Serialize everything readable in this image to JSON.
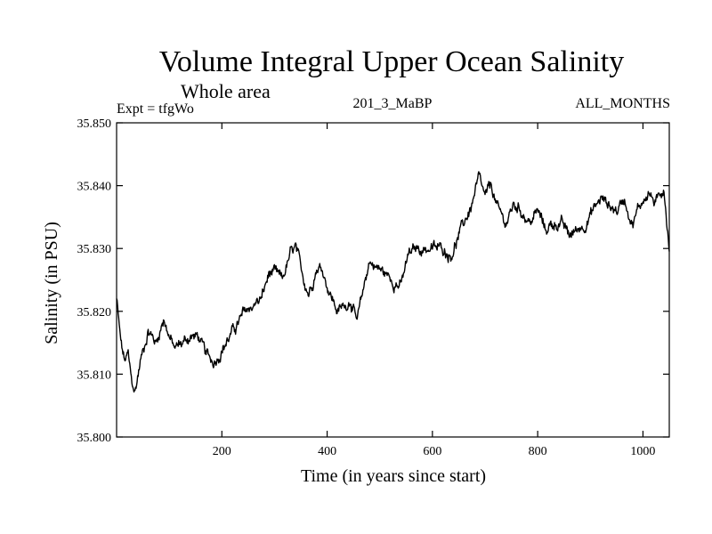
{
  "chart_data": {
    "type": "line",
    "title": "Volume Integral Upper Ocean Salinity",
    "subtitle": "Whole area",
    "annotations": {
      "experiment": "Expt = tfgWo",
      "run": "201_3_MaBP",
      "period": "ALL_MONTHS"
    },
    "xlabel": "Time (in years since start)",
    "ylabel": "Salinity (in PSU)",
    "xlim": [
      0,
      1050
    ],
    "ylim": [
      35.8,
      35.85
    ],
    "xticks": [
      200,
      400,
      600,
      800,
      1000
    ],
    "yticks": [
      35.8,
      35.81,
      35.82,
      35.83,
      35.84,
      35.85
    ],
    "ytick_labels": [
      "35.800",
      "35.810",
      "35.820",
      "35.830",
      "35.840",
      "35.850"
    ],
    "grid": false,
    "series": [
      {
        "name": "Salinity",
        "color": "#000000",
        "noise_amplitude": 0.0012,
        "points": [
          [
            0,
            35.822
          ],
          [
            8,
            35.815
          ],
          [
            15,
            35.812
          ],
          [
            22,
            35.813
          ],
          [
            28,
            35.809
          ],
          [
            35,
            35.807
          ],
          [
            45,
            35.812
          ],
          [
            60,
            35.817
          ],
          [
            75,
            35.815
          ],
          [
            90,
            35.819
          ],
          [
            100,
            35.816
          ],
          [
            110,
            35.814
          ],
          [
            125,
            35.815
          ],
          [
            140,
            35.816
          ],
          [
            155,
            35.816
          ],
          [
            170,
            35.813
          ],
          [
            185,
            35.812
          ],
          [
            200,
            35.814
          ],
          [
            215,
            35.816
          ],
          [
            230,
            35.818
          ],
          [
            245,
            35.82
          ],
          [
            260,
            35.821
          ],
          [
            275,
            35.822
          ],
          [
            290,
            35.826
          ],
          [
            300,
            35.826
          ],
          [
            315,
            35.825
          ],
          [
            330,
            35.829
          ],
          [
            340,
            35.83
          ],
          [
            352,
            35.826
          ],
          [
            365,
            35.823
          ],
          [
            380,
            35.827
          ],
          [
            390,
            35.827
          ],
          [
            405,
            35.823
          ],
          [
            420,
            35.82
          ],
          [
            435,
            35.821
          ],
          [
            445,
            35.822
          ],
          [
            457,
            35.818
          ],
          [
            470,
            35.824
          ],
          [
            480,
            35.828
          ],
          [
            495,
            35.827
          ],
          [
            510,
            35.826
          ],
          [
            525,
            35.825
          ],
          [
            540,
            35.824
          ],
          [
            555,
            35.829
          ],
          [
            570,
            35.83
          ],
          [
            590,
            35.83
          ],
          [
            605,
            35.83
          ],
          [
            620,
            35.83
          ],
          [
            635,
            35.829
          ],
          [
            645,
            35.831
          ],
          [
            660,
            35.834
          ],
          [
            675,
            35.837
          ],
          [
            688,
            35.841
          ],
          [
            700,
            35.838
          ],
          [
            712,
            35.84
          ],
          [
            725,
            35.836
          ],
          [
            740,
            35.834
          ],
          [
            755,
            35.837
          ],
          [
            770,
            35.836
          ],
          [
            785,
            35.834
          ],
          [
            800,
            35.836
          ],
          [
            815,
            35.833
          ],
          [
            830,
            35.834
          ],
          [
            845,
            35.834
          ],
          [
            860,
            35.832
          ],
          [
            875,
            35.833
          ],
          [
            890,
            35.834
          ],
          [
            905,
            35.836
          ],
          [
            920,
            35.838
          ],
          [
            935,
            35.837
          ],
          [
            950,
            35.836
          ],
          [
            965,
            35.838
          ],
          [
            980,
            35.834
          ],
          [
            995,
            35.837
          ],
          [
            1010,
            35.839
          ],
          [
            1025,
            35.837
          ],
          [
            1040,
            35.84
          ],
          [
            1050,
            35.83
          ]
        ]
      }
    ]
  }
}
